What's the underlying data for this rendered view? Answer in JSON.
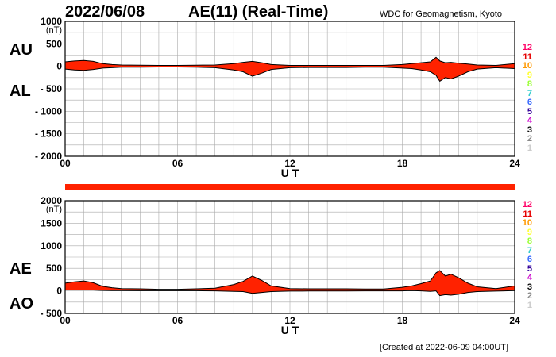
{
  "header": {
    "date": "2022/06/08",
    "title": "AE(11) (Real-Time)",
    "source": "WDC for Geomagnetism, Kyoto"
  },
  "footer": {
    "created": "[Created at 2022-06-09 04:00UT]"
  },
  "panel_labels": {
    "top_upper": "AU",
    "top_lower": "AL",
    "bottom_upper": "AE",
    "bottom_lower": "AO"
  },
  "legend": {
    "entries": [
      "12",
      "11",
      "10",
      "9",
      "8",
      "7",
      "6",
      "5",
      "4",
      "3",
      "2",
      "1"
    ],
    "colors": [
      "#ff0066",
      "#e60000",
      "#ff9900",
      "#ffff33",
      "#99ff33",
      "#33cccc",
      "#3366ff",
      "#330099",
      "#cc00cc",
      "#000000",
      "#888888",
      "#cccccc"
    ]
  },
  "colors": {
    "fill": "#ff2200",
    "outline": "#000000",
    "grid": "#aaaaaa",
    "bar": "#ff2200"
  },
  "chart_data": [
    {
      "type": "area",
      "xlabel": "U T",
      "ylabel_unit": "(nT)",
      "xlim": [
        0,
        24
      ],
      "ylim": [
        -2000,
        1000
      ],
      "xticks": [
        "00",
        "06",
        "12",
        "18",
        "24"
      ],
      "yticks": [
        "1000",
        "500",
        "0",
        "- 500",
        "- 1000",
        "- 1500",
        "- 2000"
      ],
      "ytick_values": [
        1000,
        500,
        0,
        -500,
        -1000,
        -1500,
        -2000
      ],
      "x": [
        0,
        0.5,
        1,
        1.5,
        2,
        2.5,
        3,
        4,
        5,
        6,
        7,
        8,
        9,
        9.5,
        10,
        10.5,
        11,
        12,
        13,
        14,
        15,
        16,
        17,
        18,
        18.5,
        19,
        19.5,
        19.8,
        20,
        20.3,
        20.6,
        21,
        21.5,
        22,
        23,
        24
      ],
      "series": [
        {
          "name": "AU",
          "values": [
            100,
            120,
            130,
            110,
            60,
            40,
            30,
            25,
            20,
            20,
            25,
            30,
            60,
            90,
            110,
            80,
            40,
            20,
            20,
            20,
            20,
            20,
            20,
            40,
            60,
            80,
            100,
            200,
            120,
            80,
            90,
            70,
            50,
            30,
            20,
            60
          ]
        },
        {
          "name": "AL",
          "values": [
            -60,
            -80,
            -90,
            -70,
            -40,
            -30,
            -20,
            -20,
            -15,
            -15,
            -20,
            -30,
            -80,
            -120,
            -220,
            -150,
            -70,
            -30,
            -25,
            -25,
            -25,
            -20,
            -20,
            -40,
            -50,
            -80,
            -120,
            -200,
            -330,
            -250,
            -280,
            -220,
            -120,
            -60,
            -30,
            -50
          ]
        }
      ]
    },
    {
      "type": "area",
      "xlabel": "U T",
      "ylabel_unit": "(nT)",
      "xlim": [
        0,
        24
      ],
      "ylim": [
        -500,
        2000
      ],
      "xticks": [
        "00",
        "06",
        "12",
        "18",
        "24"
      ],
      "yticks": [
        "2000",
        "1500",
        "1000",
        "500",
        "0",
        "- 500"
      ],
      "ytick_values": [
        2000,
        1500,
        1000,
        500,
        0,
        -500
      ],
      "x": [
        0,
        0.5,
        1,
        1.5,
        2,
        2.5,
        3,
        4,
        5,
        6,
        7,
        8,
        9,
        9.5,
        10,
        10.5,
        11,
        12,
        13,
        14,
        15,
        16,
        17,
        18,
        18.5,
        19,
        19.5,
        19.8,
        20,
        20.3,
        20.6,
        21,
        21.5,
        22,
        23,
        24
      ],
      "series": [
        {
          "name": "AE",
          "values": [
            170,
            200,
            220,
            180,
            100,
            70,
            50,
            45,
            35,
            35,
            45,
            60,
            140,
            210,
            330,
            230,
            110,
            50,
            45,
            45,
            45,
            40,
            40,
            80,
            110,
            160,
            220,
            400,
            450,
            330,
            370,
            290,
            170,
            90,
            50,
            110
          ]
        },
        {
          "name": "AO",
          "values": [
            20,
            20,
            20,
            20,
            10,
            5,
            5,
            3,
            3,
            3,
            3,
            0,
            -10,
            -15,
            -55,
            -35,
            -15,
            -5,
            -3,
            -3,
            -3,
            0,
            0,
            0,
            5,
            0,
            -10,
            0,
            -105,
            -85,
            -95,
            -75,
            -35,
            -15,
            -5,
            5
          ]
        }
      ]
    }
  ]
}
